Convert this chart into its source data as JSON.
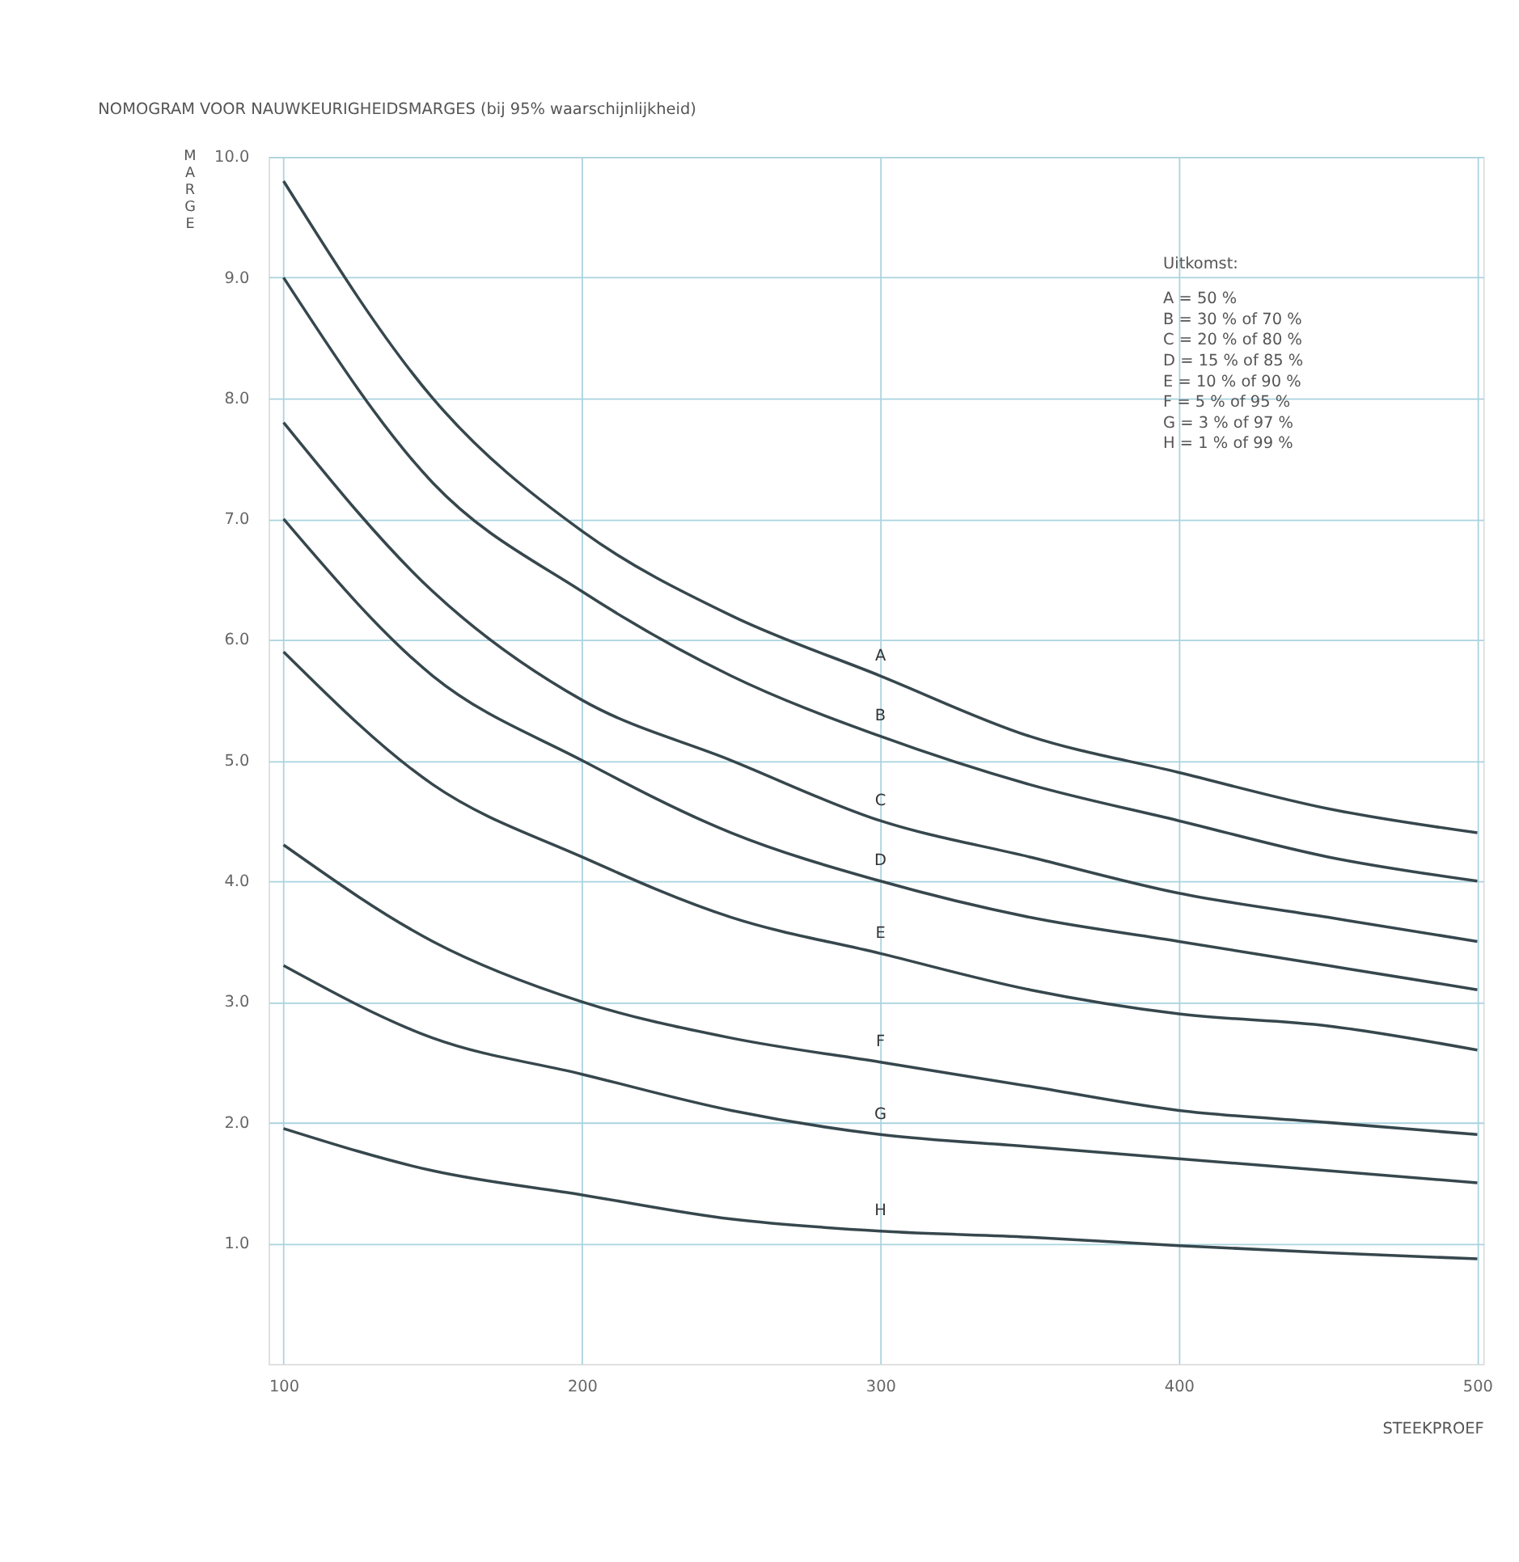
{
  "chart_data": {
    "type": "line",
    "title": "NOMOGRAM VOOR NAUWKEURIGHEIDSMARGES (bij 95% waarschijnlijkheid)",
    "xlabel": "STEEKPROEF",
    "ylabel": "MARGE",
    "x": [
      100,
      150,
      200,
      250,
      300,
      350,
      400,
      450,
      500
    ],
    "series": [
      {
        "name": "A",
        "color": "#36474d",
        "values": [
          9.8,
          8.0,
          6.9,
          6.2,
          5.7,
          5.2,
          4.9,
          4.6,
          4.4
        ]
      },
      {
        "name": "B",
        "color": "#36474d",
        "values": [
          9.0,
          7.3,
          6.4,
          5.7,
          5.2,
          4.8,
          4.5,
          4.2,
          4.0
        ]
      },
      {
        "name": "C",
        "color": "#36474d",
        "values": [
          7.8,
          6.4,
          5.5,
          5.0,
          4.5,
          4.2,
          3.9,
          3.7,
          3.5
        ]
      },
      {
        "name": "D",
        "color": "#36474d",
        "values": [
          7.0,
          5.7,
          5.0,
          4.4,
          4.0,
          3.7,
          3.5,
          3.3,
          3.1
        ]
      },
      {
        "name": "E",
        "color": "#36474d",
        "values": [
          5.9,
          4.8,
          4.2,
          3.7,
          3.4,
          3.1,
          2.9,
          2.8,
          2.6
        ]
      },
      {
        "name": "F",
        "color": "#36474d",
        "values": [
          4.3,
          3.5,
          3.0,
          2.7,
          2.5,
          2.3,
          2.1,
          2.0,
          1.9
        ]
      },
      {
        "name": "G",
        "color": "#36474d",
        "values": [
          3.3,
          2.7,
          2.4,
          2.1,
          1.9,
          1.8,
          1.7,
          1.6,
          1.5
        ]
      },
      {
        "name": "H",
        "color": "#36474d",
        "values": [
          1.95,
          1.6,
          1.4,
          1.2,
          1.1,
          1.05,
          0.98,
          0.92,
          0.87
        ]
      }
    ],
    "xlim": [
      95,
      502
    ],
    "ylim": [
      0,
      10
    ],
    "xticks": [
      100,
      200,
      300,
      400,
      500
    ],
    "yticks": [
      {
        "value": 1,
        "label": "1.0"
      },
      {
        "value": 2,
        "label": "2.0"
      },
      {
        "value": 3,
        "label": "3.0"
      },
      {
        "value": 4,
        "label": "4.0"
      },
      {
        "value": 5,
        "label": "5.0"
      },
      {
        "value": 6,
        "label": "6.0"
      },
      {
        "value": 7,
        "label": "7.0"
      },
      {
        "value": 8,
        "label": "8.0"
      },
      {
        "value": 9,
        "label": "9.0"
      },
      {
        "value": 10,
        "label": "10.0"
      }
    ],
    "grid": true,
    "legend": false,
    "marker": "none",
    "line_style": "solid",
    "annotations": [
      "Uitkomst:",
      "A  =  50 %",
      "B  =  30 % of 70 %",
      "C  =  20 % of 80 %",
      "D  =  15 % of 85 %",
      "E  =  10 % of 90 %",
      "F  =  5 % of 95 %",
      "G  =  3 % of 97 %",
      "H  =  1 % of 99 %"
    ]
  }
}
